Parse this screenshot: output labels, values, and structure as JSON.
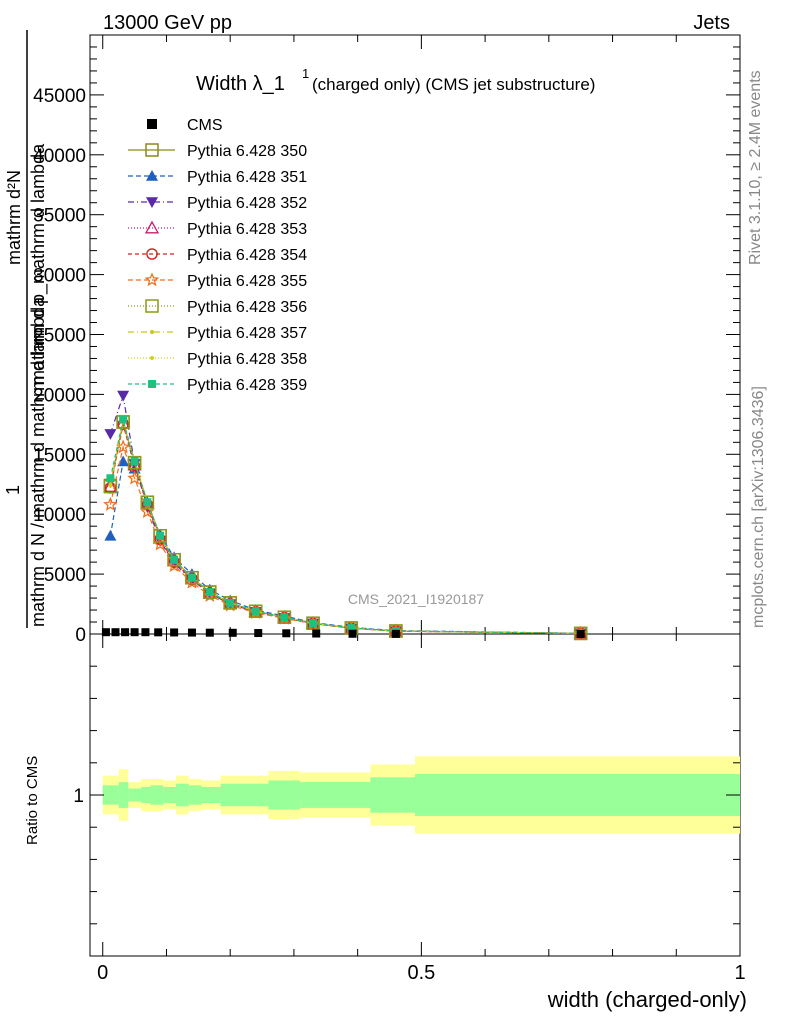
{
  "header": {
    "left": "13000 GeV pp",
    "right": "Jets"
  },
  "side_labels": {
    "rivet": "Rivet 3.1.10, ≥ 2.4M events",
    "mcplots": "mcplots.cern.ch [arXiv:1306.3436]"
  },
  "watermark": "CMS_2021_I1920187",
  "colors": {
    "pythia350": "#8b8b1b",
    "pythia351": "#1f5fbf",
    "pythia352": "#5a2aa6",
    "pythia353": "#c0206f",
    "pythia354": "#d42020",
    "pythia355": "#f07020",
    "pythia356": "#8b9a1a",
    "pythia357": "#c8c81e",
    "pythia358": "#d2d21a",
    "pythia359": "#20c080",
    "band_inner": "#99ff99",
    "band_outer": "#ffff99"
  },
  "chart_data": [
    {
      "type": "line",
      "title_main": "Width λ_1",
      "title_sup": "1",
      "title_rest": "(charged only) (CMS jet substructure)",
      "ylabel_top": "mathrm d²N",
      "ylabel_num": "1",
      "ylabel_frac": "mathrm d p_mathrm d lambda",
      "ylabel_den": "mathrm d N / mathrm d mathrm d lambda",
      "ylim": [
        0,
        50000
      ],
      "yticks": [
        0,
        5000,
        10000,
        15000,
        20000,
        25000,
        30000,
        35000,
        40000,
        45000
      ],
      "ytick_labels": [
        "0",
        "5000",
        "10000",
        "15000",
        "20000",
        "25000",
        "30000",
        "35000",
        "40000",
        "45000"
      ],
      "xlim": [
        -0.02,
        1.0
      ],
      "legend_placement": "top-left",
      "series": [
        {
          "name": "CMS",
          "key": "cms",
          "color": "#000000",
          "marker": "square-filled",
          "dash": "none",
          "x": [
            0.005,
            0.02,
            0.035,
            0.05,
            0.067,
            0.087,
            0.112,
            0.14,
            0.168,
            0.204,
            0.244,
            0.288,
            0.335,
            0.392,
            0.46,
            0.75
          ],
          "y": [
            150,
            150,
            150,
            150,
            150,
            140,
            130,
            120,
            110,
            100,
            80,
            60,
            40,
            20,
            10,
            0
          ]
        },
        {
          "name": "Pythia 6.428 350",
          "key": "p350",
          "color": "#8b8b1b",
          "marker": "square-open",
          "dash": "solid",
          "x": [
            0.012,
            0.032,
            0.05,
            0.07,
            0.09,
            0.112,
            0.14,
            0.168,
            0.2,
            0.24,
            0.285,
            0.33,
            0.39,
            0.46,
            0.75
          ],
          "y": [
            12400,
            17700,
            14300,
            11000,
            8200,
            6200,
            4700,
            3500,
            2600,
            1900,
            1400,
            900,
            500,
            250,
            50
          ]
        },
        {
          "name": "Pythia 6.428 351",
          "key": "p351",
          "color": "#1f5fbf",
          "marker": "triangle-up-filled",
          "dash": "5,3",
          "x": [
            0.012,
            0.032,
            0.05,
            0.07,
            0.09,
            0.112,
            0.14,
            0.168,
            0.2,
            0.24,
            0.285,
            0.33,
            0.39,
            0.46,
            0.75
          ],
          "y": [
            8200,
            14400,
            13800,
            10900,
            8300,
            6400,
            5000,
            3700,
            2800,
            2000,
            1500,
            950,
            550,
            280,
            60
          ]
        },
        {
          "name": "Pythia 6.428 352",
          "key": "p352",
          "color": "#5a2aa6",
          "marker": "triangle-down-filled",
          "dash": "6,3,1,3",
          "x": [
            0.012,
            0.032,
            0.05,
            0.07,
            0.09,
            0.112,
            0.14,
            0.168,
            0.2,
            0.24,
            0.285,
            0.33,
            0.39,
            0.46,
            0.75
          ],
          "y": [
            16700,
            19900,
            14200,
            10600,
            7800,
            5900,
            4500,
            3400,
            2500,
            1850,
            1350,
            880,
            480,
            240,
            50
          ]
        },
        {
          "name": "Pythia 6.428 353",
          "key": "p353",
          "color": "#c0206f",
          "marker": "triangle-up-open",
          "dash": "1,2",
          "x": [
            0.012,
            0.032,
            0.05,
            0.07,
            0.09,
            0.112,
            0.14,
            0.168,
            0.2,
            0.24,
            0.285,
            0.33,
            0.39,
            0.46,
            0.75
          ],
          "y": [
            12300,
            17600,
            14100,
            10900,
            8000,
            6100,
            4600,
            3400,
            2550,
            1880,
            1380,
            890,
            490,
            245,
            50
          ]
        },
        {
          "name": "Pythia 6.428 354",
          "key": "p354",
          "color": "#d42020",
          "marker": "circle-open",
          "dash": "4,3",
          "x": [
            0.012,
            0.032,
            0.05,
            0.07,
            0.09,
            0.112,
            0.14,
            0.168,
            0.2,
            0.24,
            0.285,
            0.33,
            0.39,
            0.46,
            0.75
          ],
          "y": [
            12200,
            17500,
            14000,
            10800,
            7900,
            6000,
            4550,
            3380,
            2520,
            1860,
            1370,
            880,
            485,
            242,
            50
          ]
        },
        {
          "name": "Pythia 6.428 355",
          "key": "p355",
          "color": "#f07020",
          "marker": "star-open",
          "dash": "5,3",
          "x": [
            0.012,
            0.032,
            0.05,
            0.07,
            0.09,
            0.112,
            0.14,
            0.168,
            0.2,
            0.24,
            0.285,
            0.33,
            0.39,
            0.46,
            0.75
          ],
          "y": [
            10800,
            15600,
            13000,
            10200,
            7500,
            5700,
            4300,
            3200,
            2400,
            1780,
            1300,
            850,
            470,
            235,
            48
          ]
        },
        {
          "name": "Pythia 6.428 356",
          "key": "p356",
          "color": "#8b9a1a",
          "marker": "square-open",
          "dash": "1,2",
          "x": [
            0.012,
            0.032,
            0.05,
            0.07,
            0.09,
            0.112,
            0.14,
            0.168,
            0.2,
            0.24,
            0.285,
            0.33,
            0.39,
            0.46,
            0.75
          ],
          "y": [
            12300,
            17700,
            14300,
            11000,
            8200,
            6200,
            4700,
            3500,
            2600,
            1900,
            1400,
            900,
            500,
            250,
            50
          ]
        },
        {
          "name": "Pythia 6.428 357",
          "key": "p357",
          "color": "#c8c81e",
          "marker": "dot",
          "dash": "6,3,1,3",
          "x": [
            0.012,
            0.032,
            0.05,
            0.07,
            0.09,
            0.112,
            0.14,
            0.168,
            0.2,
            0.24,
            0.285,
            0.33,
            0.39,
            0.46,
            0.75
          ],
          "y": [
            12500,
            17800,
            14350,
            11050,
            8200,
            6200,
            4700,
            3500,
            2600,
            1900,
            1400,
            900,
            500,
            250,
            50
          ]
        },
        {
          "name": "Pythia 6.428 358",
          "key": "p358",
          "color": "#d2d21a",
          "marker": "dot",
          "dash": "1,2",
          "x": [
            0.012,
            0.032,
            0.05,
            0.07,
            0.09,
            0.112,
            0.14,
            0.168,
            0.2,
            0.24,
            0.285,
            0.33,
            0.39,
            0.46,
            0.75
          ],
          "y": [
            12400,
            17700,
            14300,
            11000,
            8150,
            6180,
            4680,
            3490,
            2590,
            1890,
            1395,
            895,
            498,
            249,
            50
          ]
        },
        {
          "name": "Pythia 6.428 359",
          "key": "p359",
          "color": "#20c080",
          "marker": "square-filled-small",
          "dash": "4,3",
          "x": [
            0.012,
            0.032,
            0.05,
            0.07,
            0.09,
            0.112,
            0.14,
            0.168,
            0.2,
            0.24,
            0.285,
            0.33,
            0.39,
            0.46,
            0.75
          ],
          "y": [
            13000,
            17900,
            14400,
            11000,
            8200,
            6200,
            4700,
            3500,
            2600,
            1900,
            1400,
            900,
            500,
            250,
            50
          ]
        }
      ]
    },
    {
      "type": "area",
      "ylabel": "Ratio to CMS",
      "ytick_labels": [
        "1"
      ],
      "yticks": [
        1
      ],
      "ylim": [
        0.5,
        1.5
      ],
      "xlim": [
        -0.02,
        1.0
      ],
      "xticks": [
        0,
        0.5,
        1
      ],
      "xtick_labels": [
        "0",
        "0.5",
        "1"
      ],
      "xlabel": "width (charged-only)",
      "bins": [
        {
          "lo": 0.0,
          "hi": 0.025,
          "inner": [
            0.97,
            1.03
          ],
          "outer": [
            0.94,
            1.06
          ]
        },
        {
          "lo": 0.025,
          "hi": 0.04,
          "inner": [
            0.96,
            1.04
          ],
          "outer": [
            0.92,
            1.08
          ]
        },
        {
          "lo": 0.04,
          "hi": 0.06,
          "inner": [
            0.98,
            1.02
          ],
          "outer": [
            0.96,
            1.04
          ]
        },
        {
          "lo": 0.06,
          "hi": 0.075,
          "inner": [
            0.975,
            1.025
          ],
          "outer": [
            0.95,
            1.05
          ]
        },
        {
          "lo": 0.075,
          "hi": 0.095,
          "inner": [
            0.97,
            1.03
          ],
          "outer": [
            0.95,
            1.05
          ]
        },
        {
          "lo": 0.095,
          "hi": 0.115,
          "inner": [
            0.975,
            1.025
          ],
          "outer": [
            0.955,
            1.045
          ]
        },
        {
          "lo": 0.115,
          "hi": 0.135,
          "inner": [
            0.965,
            1.035
          ],
          "outer": [
            0.94,
            1.06
          ]
        },
        {
          "lo": 0.135,
          "hi": 0.155,
          "inner": [
            0.97,
            1.03
          ],
          "outer": [
            0.95,
            1.05
          ]
        },
        {
          "lo": 0.155,
          "hi": 0.185,
          "inner": [
            0.975,
            1.025
          ],
          "outer": [
            0.955,
            1.045
          ]
        },
        {
          "lo": 0.185,
          "hi": 0.22,
          "inner": [
            0.965,
            1.035
          ],
          "outer": [
            0.94,
            1.06
          ]
        },
        {
          "lo": 0.22,
          "hi": 0.26,
          "inner": [
            0.965,
            1.035
          ],
          "outer": [
            0.94,
            1.06
          ]
        },
        {
          "lo": 0.26,
          "hi": 0.31,
          "inner": [
            0.955,
            1.045
          ],
          "outer": [
            0.925,
            1.075
          ]
        },
        {
          "lo": 0.31,
          "hi": 0.42,
          "inner": [
            0.96,
            1.04
          ],
          "outer": [
            0.93,
            1.07
          ]
        },
        {
          "lo": 0.42,
          "hi": 0.49,
          "inner": [
            0.945,
            1.055
          ],
          "outer": [
            0.905,
            1.095
          ]
        },
        {
          "lo": 0.49,
          "hi": 1.0,
          "inner": [
            0.935,
            1.065
          ],
          "outer": [
            0.88,
            1.12
          ]
        }
      ]
    }
  ]
}
